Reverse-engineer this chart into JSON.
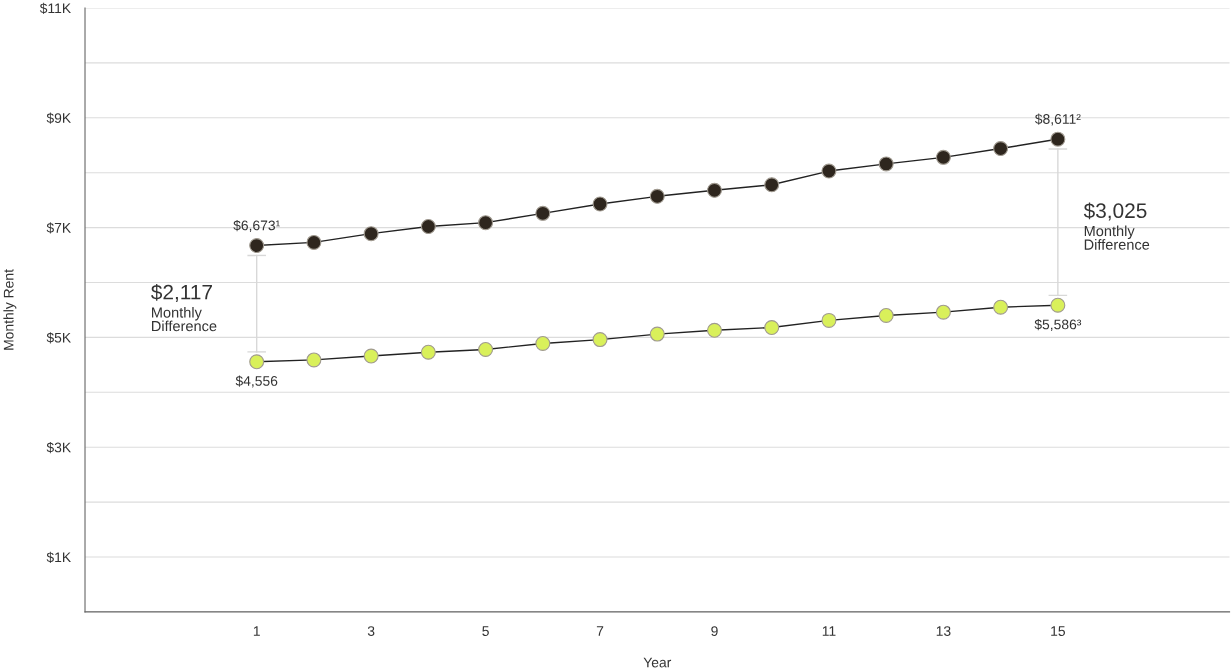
{
  "chart_data": {
    "type": "line",
    "xlabel": "Year",
    "ylabel": "Monthly Rent",
    "x": [
      1,
      2,
      3,
      4,
      5,
      6,
      7,
      8,
      9,
      10,
      11,
      12,
      13,
      14,
      15
    ],
    "series": [
      {
        "color": "#2e261e",
        "values": [
          6673,
          6730,
          6890,
          7020,
          7090,
          7260,
          7430,
          7570,
          7680,
          7780,
          8030,
          8160,
          8280,
          8440,
          8611
        ],
        "value_labels": [
          "$6,673¹",
          null,
          null,
          null,
          null,
          null,
          null,
          null,
          null,
          null,
          null,
          null,
          null,
          null,
          "$8,611²"
        ]
      },
      {
        "color": "#d9f05a",
        "values": [
          4556,
          4590,
          4660,
          4730,
          4780,
          4890,
          4960,
          5060,
          5130,
          5180,
          5310,
          5400,
          5460,
          5550,
          5586
        ],
        "value_labels": [
          "$4,556",
          null,
          null,
          null,
          null,
          null,
          null,
          null,
          null,
          null,
          null,
          null,
          null,
          null,
          "$5,586³"
        ]
      }
    ],
    "annotations": [
      "$2,117\nMonthly\nDifference",
      "$3,025\nMonthly\nDifference"
    ],
    "xlim": [
      -2,
      18
    ],
    "xticks": [
      1,
      3,
      5,
      7,
      9,
      11,
      13,
      15
    ],
    "ylim": [
      0,
      11000
    ],
    "yticks": [
      {
        "value": 0,
        "label": null
      },
      {
        "value": 1000,
        "label": "$1K"
      },
      {
        "value": 2000,
        "label": null
      },
      {
        "value": 3000,
        "label": "$3K"
      },
      {
        "value": 4000,
        "label": null
      },
      {
        "value": 5000,
        "label": "$5K"
      },
      {
        "value": 6000,
        "label": null
      },
      {
        "value": 7000,
        "label": "$7K"
      },
      {
        "value": 8000,
        "label": null
      },
      {
        "value": 9000,
        "label": "$9K"
      },
      {
        "value": 10000,
        "label": null
      },
      {
        "value": 11000,
        "label": "$11K"
      }
    ],
    "grid": "y",
    "marker": "circle",
    "line_style": "solid"
  }
}
